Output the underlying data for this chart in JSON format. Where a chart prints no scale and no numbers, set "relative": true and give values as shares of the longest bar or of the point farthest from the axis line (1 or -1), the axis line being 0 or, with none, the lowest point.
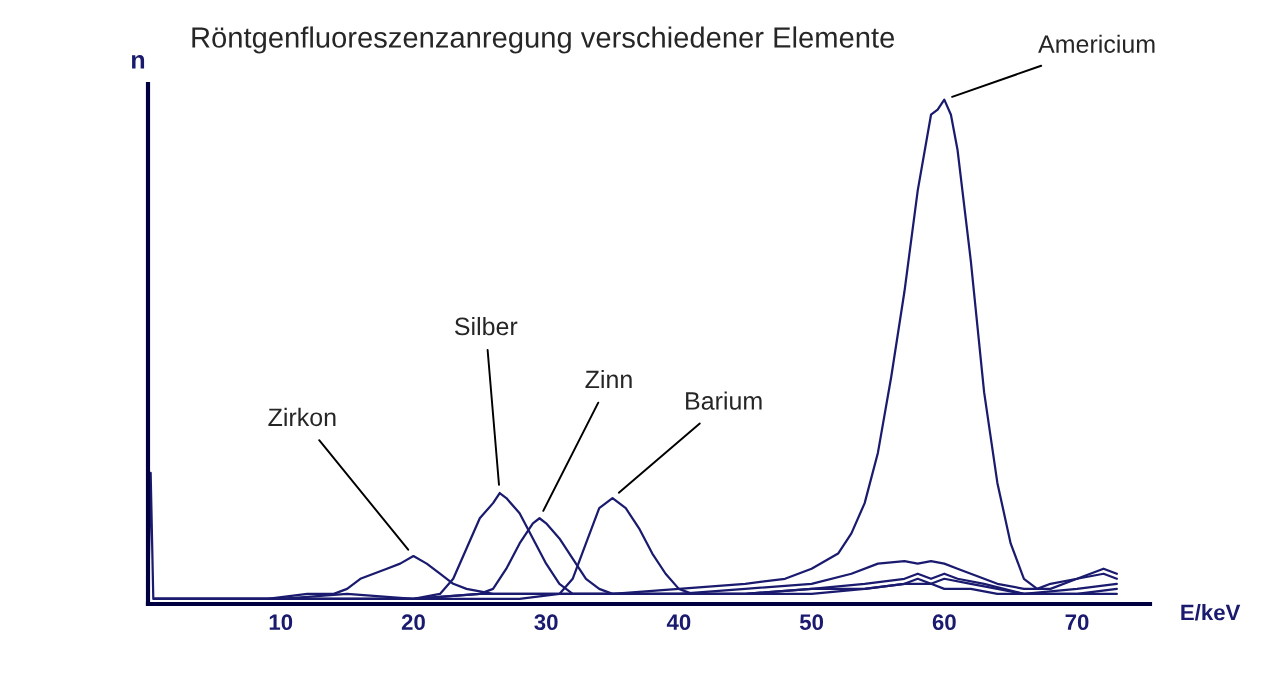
{
  "chart_data": {
    "type": "line",
    "title": "Röntgenfluoreszenzanregung verschiedener Elemente",
    "xlabel": "E/keV",
    "ylabel": "n",
    "relative": true,
    "xlim": [
      0,
      75.5
    ],
    "xticks": [
      10,
      20,
      30,
      40,
      50,
      60,
      70
    ],
    "grid": false,
    "line_style": "solid",
    "series": [
      {
        "name": "Zirkon",
        "color": "#1a1a6e",
        "x": [
          0.5,
          3,
          6,
          9,
          12,
          14,
          15,
          16,
          17,
          18,
          19,
          20,
          21,
          22,
          23,
          24,
          26,
          30,
          35,
          40,
          45,
          50,
          53,
          55,
          57,
          58,
          59,
          60,
          61,
          62,
          64,
          66,
          68,
          70,
          72,
          73
        ],
        "values": [
          0.01,
          0.01,
          0.01,
          0.01,
          0.02,
          0.02,
          0.03,
          0.05,
          0.06,
          0.07,
          0.08,
          0.095,
          0.08,
          0.06,
          0.04,
          0.03,
          0.02,
          0.02,
          0.02,
          0.02,
          0.03,
          0.04,
          0.06,
          0.08,
          0.085,
          0.08,
          0.085,
          0.08,
          0.07,
          0.06,
          0.04,
          0.03,
          0.03,
          0.05,
          0.06,
          0.05
        ]
      },
      {
        "name": "Silber",
        "color": "#1a1a6e",
        "x": [
          0.5,
          5,
          10,
          15,
          20,
          22,
          23,
          24,
          25,
          26,
          26.5,
          27,
          28,
          29,
          30,
          31,
          32,
          34,
          38,
          45,
          50,
          54,
          57,
          58,
          59,
          60,
          61,
          63,
          66,
          70,
          73
        ],
        "values": [
          0.01,
          0.01,
          0.01,
          0.01,
          0.01,
          0.02,
          0.05,
          0.11,
          0.17,
          0.2,
          0.22,
          0.21,
          0.18,
          0.13,
          0.08,
          0.04,
          0.02,
          0.02,
          0.02,
          0.02,
          0.03,
          0.04,
          0.05,
          0.06,
          0.05,
          0.06,
          0.05,
          0.04,
          0.02,
          0.03,
          0.04
        ]
      },
      {
        "name": "Zinn",
        "color": "#1a1a6e",
        "x": [
          0.5,
          5,
          10,
          15,
          20,
          25,
          26,
          27,
          28,
          29,
          29.5,
          30,
          31,
          32,
          33,
          34,
          35,
          38,
          45,
          50,
          54,
          57,
          58,
          59,
          60,
          62,
          64,
          66,
          70,
          73
        ],
        "values": [
          0.01,
          0.01,
          0.01,
          0.01,
          0.01,
          0.02,
          0.03,
          0.07,
          0.12,
          0.16,
          0.17,
          0.16,
          0.13,
          0.09,
          0.05,
          0.03,
          0.02,
          0.02,
          0.02,
          0.03,
          0.03,
          0.04,
          0.05,
          0.04,
          0.05,
          0.04,
          0.03,
          0.02,
          0.02,
          0.03
        ]
      },
      {
        "name": "Barium",
        "color": "#1a1a6e",
        "x": [
          0.5,
          5,
          10,
          20,
          28,
          31,
          32,
          33,
          34,
          35,
          36,
          37,
          38,
          39,
          40,
          41,
          43,
          46,
          50,
          54,
          57,
          59,
          60,
          62,
          64,
          66,
          70,
          73
        ],
        "values": [
          0.01,
          0.01,
          0.01,
          0.01,
          0.01,
          0.02,
          0.05,
          0.12,
          0.19,
          0.21,
          0.19,
          0.15,
          0.1,
          0.06,
          0.03,
          0.02,
          0.02,
          0.02,
          0.02,
          0.03,
          0.04,
          0.04,
          0.03,
          0.03,
          0.02,
          0.02,
          0.02,
          0.02
        ]
      },
      {
        "name": "Americium",
        "color": "#1a1a6e",
        "x": [
          0,
          0.2,
          0.4,
          2,
          5,
          10,
          15,
          20,
          25,
          30,
          35,
          40,
          45,
          48,
          50,
          52,
          53,
          54,
          55,
          56,
          57,
          58,
          59,
          59.5,
          60,
          60.5,
          61,
          62,
          63,
          64,
          65,
          66,
          67,
          68,
          70,
          72,
          73
        ],
        "values": [
          0,
          0.26,
          0.01,
          0.01,
          0.01,
          0.01,
          0.02,
          0.01,
          0.02,
          0.02,
          0.02,
          0.03,
          0.04,
          0.05,
          0.07,
          0.1,
          0.14,
          0.2,
          0.3,
          0.45,
          0.62,
          0.82,
          0.97,
          0.98,
          1.0,
          0.97,
          0.9,
          0.68,
          0.42,
          0.24,
          0.12,
          0.05,
          0.03,
          0.04,
          0.05,
          0.07,
          0.06
        ]
      }
    ]
  }
}
